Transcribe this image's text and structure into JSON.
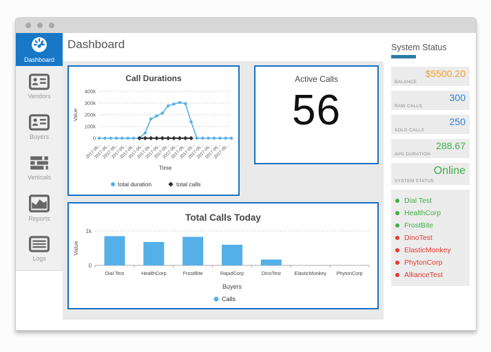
{
  "theme": {
    "accent": "#1878c8",
    "card_border": "#176fc1",
    "chart_blue": "#55afe9",
    "underline": "#2a7ca5",
    "status_green": "#3cb043",
    "status_red": "#e2382e",
    "value_orange": "#f0a132",
    "value_blue": "#2f80d8",
    "value_green": "#3fae49"
  },
  "window": {
    "titlebar_dots": 3
  },
  "sidebar": {
    "items": [
      {
        "id": "dashboard",
        "label": "Dashboard",
        "icon": "gauge-icon",
        "active": true
      },
      {
        "id": "vendors",
        "label": "Vendors",
        "icon": "id-card-icon",
        "active": false
      },
      {
        "id": "buyers",
        "label": "Buyers",
        "icon": "id-card-icon",
        "active": false
      },
      {
        "id": "verticals",
        "label": "Verticals",
        "icon": "bars-icon",
        "active": false
      },
      {
        "id": "reports",
        "label": "Reports",
        "icon": "area-chart-icon",
        "active": false
      },
      {
        "id": "logs",
        "label": "Logs",
        "icon": "list-icon",
        "active": false
      }
    ]
  },
  "header": {
    "title": "Dashboard"
  },
  "active_calls": {
    "title": "Active Calls",
    "value": "56"
  },
  "system_status": {
    "title": "System Status",
    "stats": [
      {
        "label": "BALANCE",
        "value": "$5500.20",
        "color": "#f0a132",
        "large": false
      },
      {
        "label": "RAW CALLS",
        "value": "300",
        "color": "#2f80d8",
        "large": false
      },
      {
        "label": "SOLD CALLS",
        "value": "250",
        "color": "#2f80d8",
        "large": false
      },
      {
        "label": "AVG DURATION",
        "value": "288.67",
        "color": "#3fae49",
        "large": false
      },
      {
        "label": "SYSTEM STATUS",
        "value": "Online",
        "color": "#3fae49",
        "large": true
      }
    ],
    "services": [
      {
        "name": "Dial Test",
        "status_color": "#3cb043"
      },
      {
        "name": "HealthCorp",
        "status_color": "#3cb043"
      },
      {
        "name": "FrostBite",
        "status_color": "#3cb043"
      },
      {
        "name": "DinoTest",
        "status_color": "#e2382e"
      },
      {
        "name": "ElasticMonkey",
        "status_color": "#e2382e"
      },
      {
        "name": "PhytonCorp",
        "status_color": "#e2382e"
      },
      {
        "name": "AllianceTest",
        "status_color": "#e2382e"
      }
    ]
  },
  "chart_data": [
    {
      "id": "call-durations",
      "type": "line",
      "title": "Call Durations",
      "xlabel": "Time",
      "ylabel": "Value",
      "ylim": [
        0,
        400000
      ],
      "yticks": [
        0,
        100000,
        200000,
        300000,
        400000
      ],
      "ytick_labels": [
        "0",
        "100k",
        "200k",
        "300k",
        "400k"
      ],
      "grid": true,
      "legend_position": "bottom",
      "x_tick_labels": [
        "2017-05...",
        "2017-05...",
        "2017-05...",
        "2017-05...",
        "2017-05...",
        "2017-05...",
        "2017-05...",
        "2017-05...",
        "2017-05...",
        "2017-05...",
        "2017-05...",
        "2017-05...",
        "2017-05...",
        "2017-05...",
        "2017-05...",
        "2017-05..."
      ],
      "series": [
        {
          "name": "total duration",
          "marker": "circle",
          "color": "#55afe9",
          "values": [
            0,
            0,
            0,
            0,
            0,
            0,
            0,
            0,
            45000,
            165000,
            190000,
            215000,
            277000,
            292000,
            305000,
            296000,
            140000,
            0,
            0,
            0,
            0,
            0,
            0,
            0
          ]
        },
        {
          "name": "total calls",
          "marker": "diamond",
          "color": "#333333",
          "values": [
            null,
            null,
            null,
            null,
            null,
            null,
            null,
            300,
            300,
            300,
            300,
            300,
            300,
            300,
            300,
            300,
            300,
            null,
            null,
            null,
            null,
            null,
            null,
            null
          ]
        }
      ]
    },
    {
      "id": "total-calls-today",
      "type": "bar",
      "title": "Total Calls Today",
      "xlabel": "Buyers",
      "ylabel": "Value",
      "ylim": [
        0,
        1000
      ],
      "ytick_labels": [
        "0",
        "1k"
      ],
      "grid": true,
      "legend_position": "bottom",
      "categories": [
        "Dial Test",
        "HealthCorp",
        "FrostBite",
        "RapidCorp",
        "DinoTest",
        "ElasticMonkey",
        "PhytonCorp"
      ],
      "series": [
        {
          "name": "Calls",
          "color": "#55afe9",
          "values": [
            850,
            680,
            830,
            600,
            170,
            0,
            0
          ]
        }
      ]
    }
  ]
}
